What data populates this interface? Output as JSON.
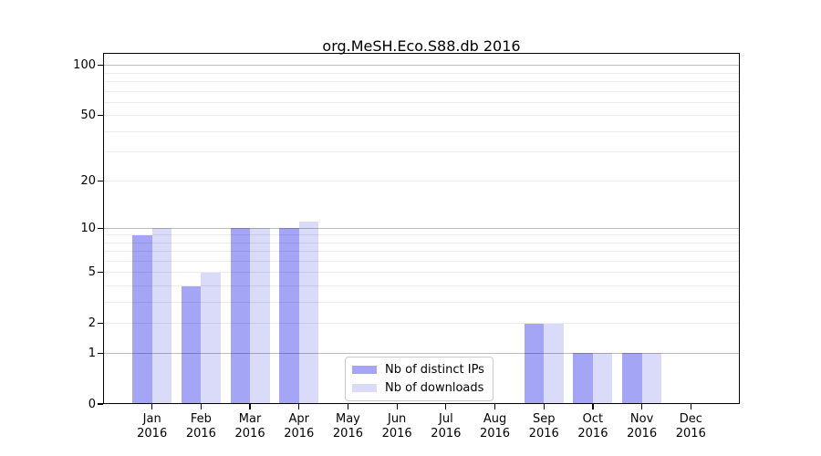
{
  "chart_data": {
    "type": "bar",
    "title": "org.MeSH.Eco.S88.db 2016",
    "categories": [
      "Jan",
      "Feb",
      "Mar",
      "Apr",
      "May",
      "Jun",
      "Jul",
      "Aug",
      "Sep",
      "Oct",
      "Nov",
      "Dec"
    ],
    "category_year": "2016",
    "series": [
      {
        "name": "Nb of distinct IPs",
        "color": "#a5a5f6",
        "values": [
          9,
          4,
          10,
          10,
          0,
          0,
          0,
          0,
          2,
          1,
          1,
          0
        ]
      },
      {
        "name": "Nb of downloads",
        "color": "#dadaf9",
        "values": [
          10,
          5,
          10,
          11,
          0,
          0,
          0,
          0,
          2,
          1,
          1,
          0
        ]
      }
    ],
    "xlabel": "",
    "ylabel": "",
    "yscale": "log1p",
    "ylim": [
      0,
      119
    ],
    "yticks": [
      0,
      1,
      2,
      5,
      10,
      20,
      50,
      100
    ],
    "major_gridlines": [
      1,
      10,
      100
    ],
    "minor_gridlines": [
      2,
      3,
      4,
      6,
      7,
      8,
      9,
      5,
      20,
      30,
      40,
      60,
      70,
      80,
      90,
      50
    ],
    "grid": "horizontal",
    "legend_position": "inside-bottom-center"
  }
}
